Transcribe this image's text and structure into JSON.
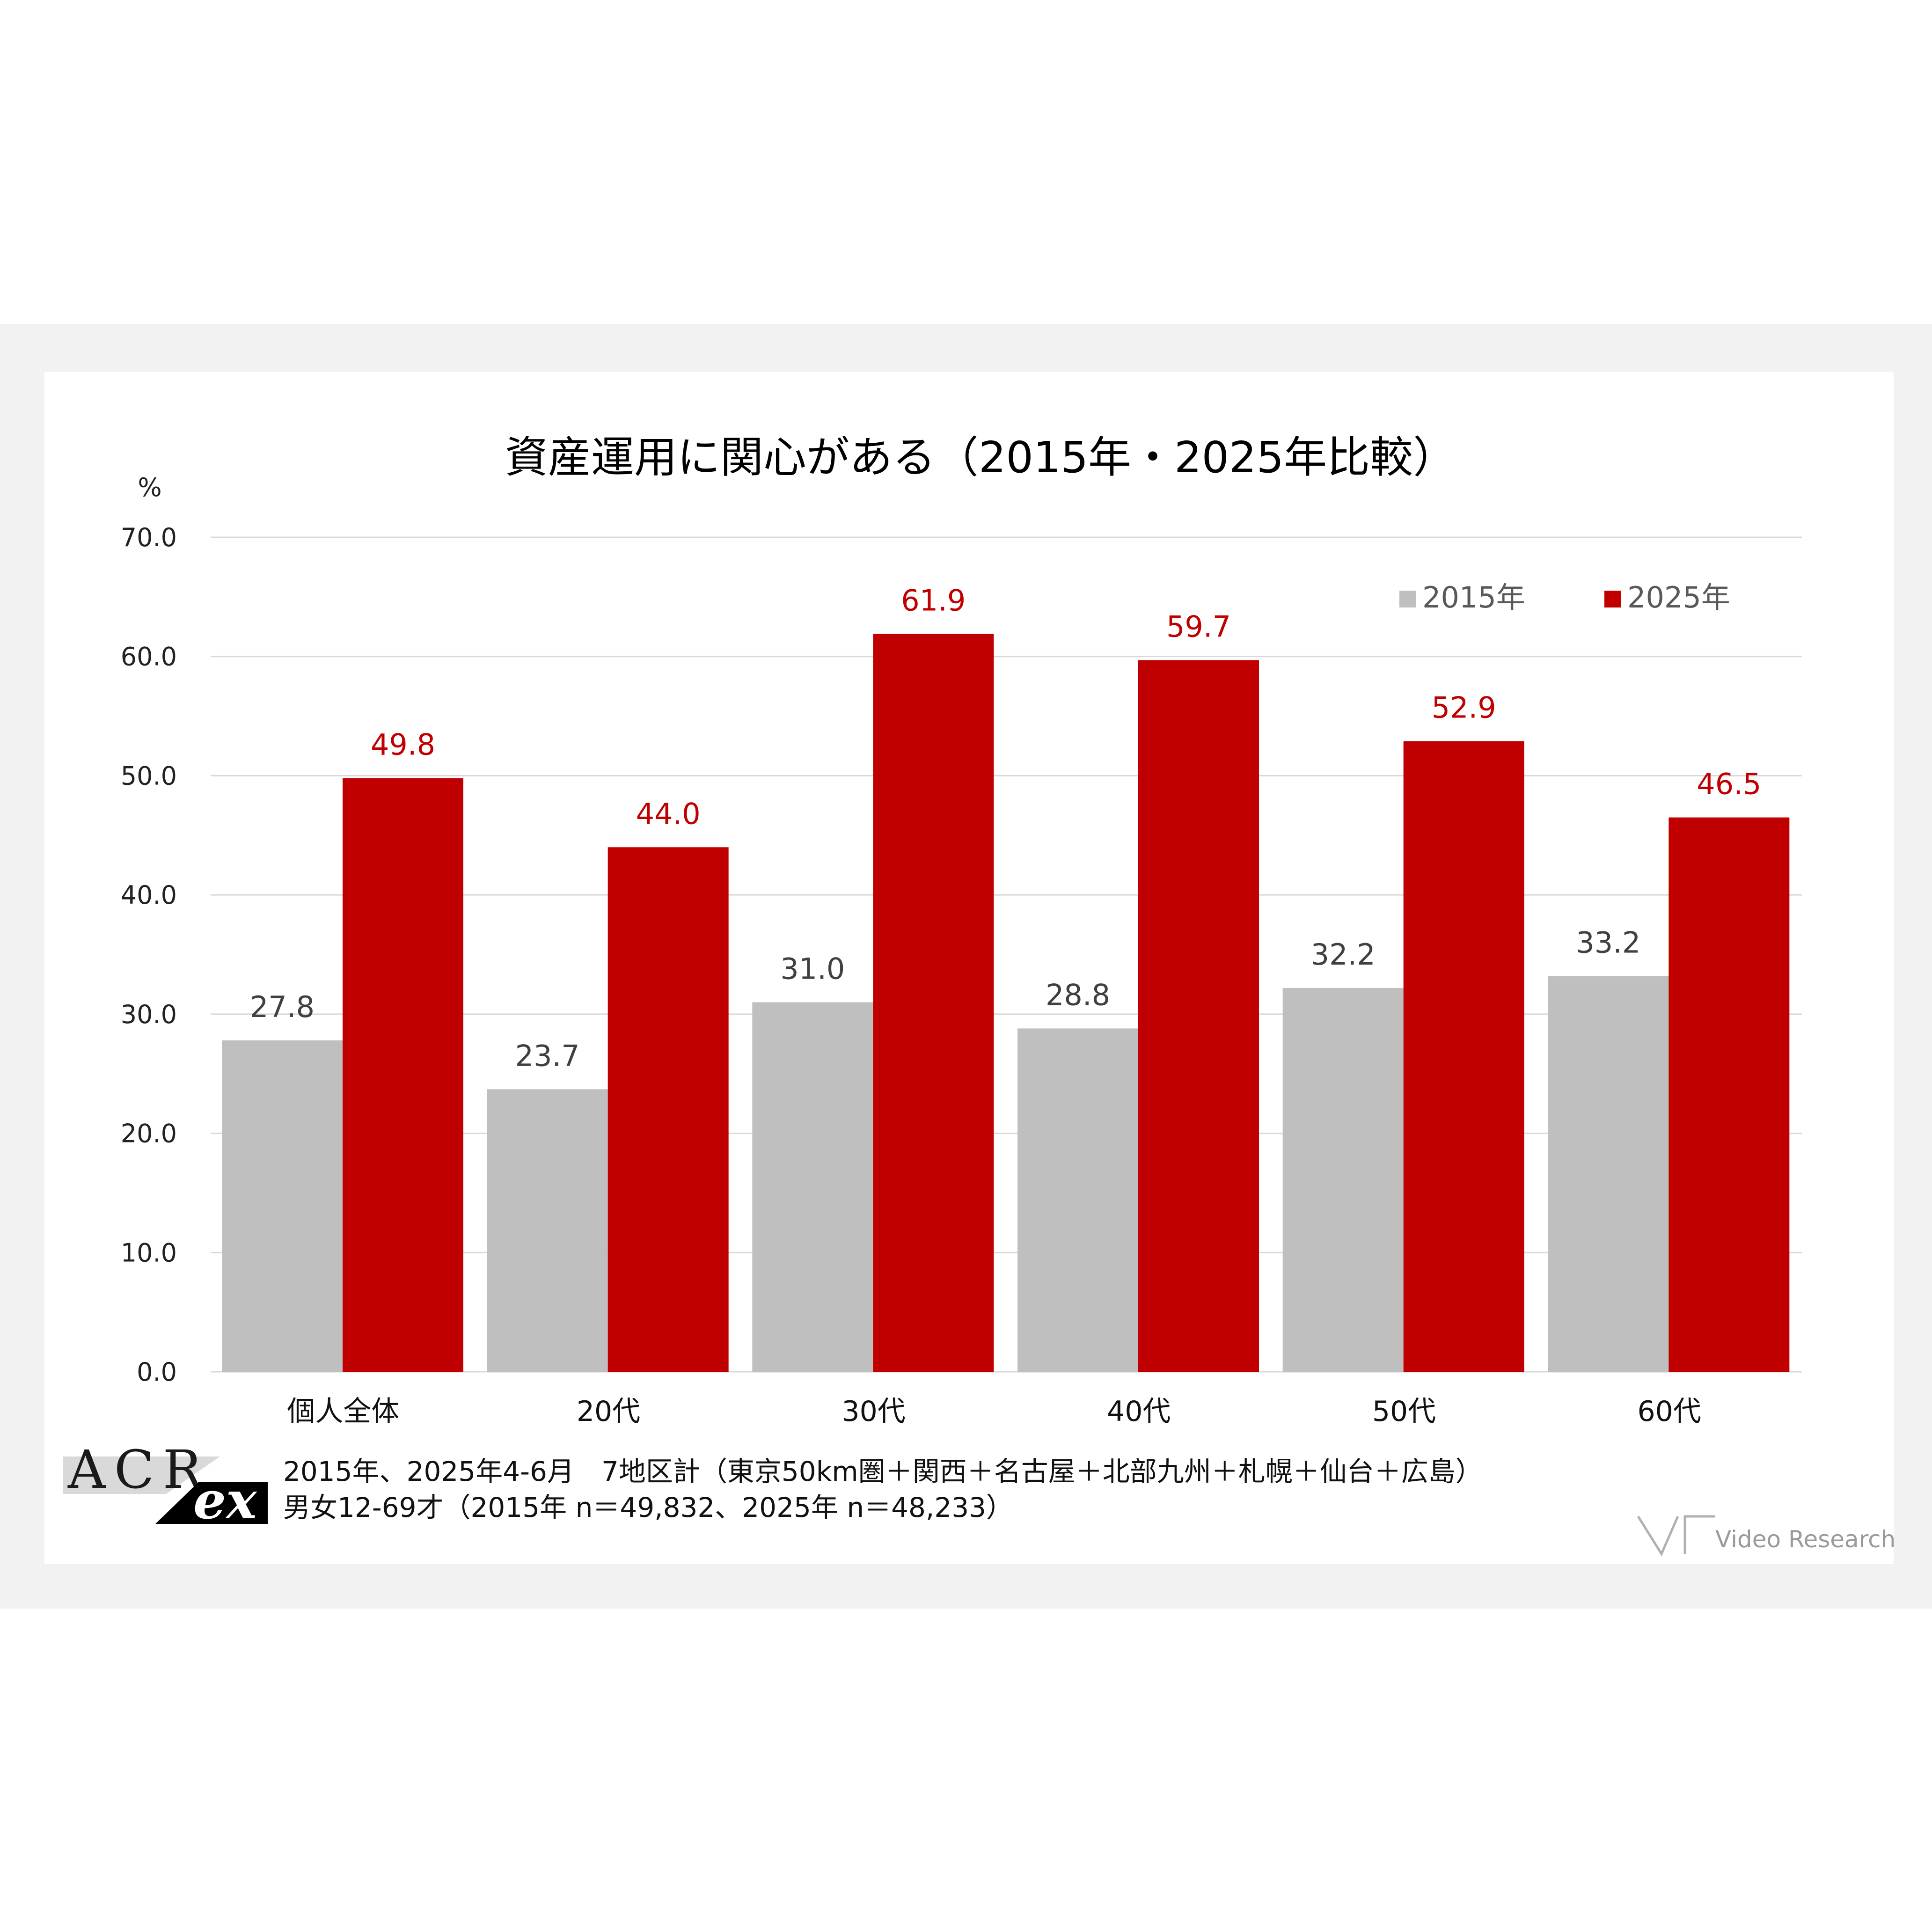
{
  "colors": {
    "series_2015": "#bfbfbf",
    "series_2025": "#c00000",
    "label_2015": "#404040",
    "label_2025": "#c00000",
    "grid": "#d9d9d9"
  },
  "chart_data": {
    "type": "bar",
    "title": "資産運用に関心がある（2015年・2025年比較）",
    "ylabel": "%",
    "xlabel": "",
    "ylim": [
      0,
      70
    ],
    "yticks": [
      "0.0",
      "10.0",
      "20.0",
      "30.0",
      "40.0",
      "50.0",
      "60.0",
      "70.0"
    ],
    "grid": true,
    "legend_position": "top-right",
    "categories": [
      "個人全体",
      "20代",
      "30代",
      "40代",
      "50代",
      "60代"
    ],
    "series": [
      {
        "name": "2015年",
        "values": [
          27.8,
          23.7,
          31.0,
          28.8,
          32.2,
          33.2
        ],
        "labels": [
          "27.8",
          "23.7",
          "31.0",
          "28.8",
          "32.2",
          "33.2"
        ]
      },
      {
        "name": "2025年",
        "values": [
          49.8,
          44.0,
          61.9,
          59.7,
          52.9,
          46.5
        ],
        "labels": [
          "49.8",
          "44.0",
          "61.9",
          "59.7",
          "52.9",
          "46.5"
        ]
      }
    ]
  },
  "notes": {
    "line1": "2015年、2025年4-6月　7地区計（東京50km圏＋関西＋名古屋＋北部九州＋札幌＋仙台＋広島）",
    "line2": "男女12-69才（2015年 n＝49,832、2025年 n＝48,233）"
  },
  "logos": {
    "acr_text": "ACR",
    "ex_text": "ex",
    "video_research_text": "Video Research"
  }
}
